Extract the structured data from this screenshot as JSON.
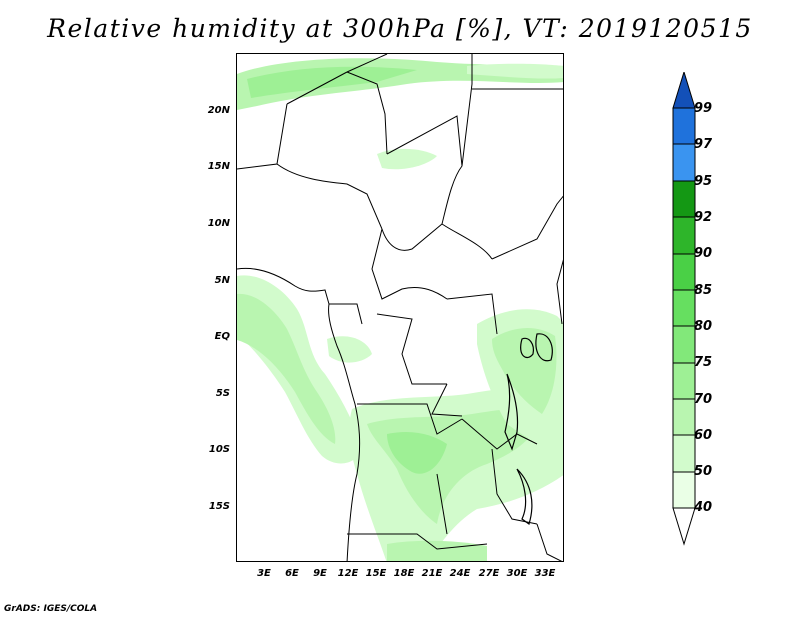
{
  "title": "Relative humidity at 300hPa [%], VT: 2019120515",
  "credit": "GrADS: IGES/COLA",
  "map": {
    "lat_labels": [
      "20N",
      "15N",
      "10N",
      "5N",
      "EQ",
      "5S",
      "10S",
      "15S"
    ],
    "lon_labels": [
      "3E",
      "6E",
      "9E",
      "12E",
      "15E",
      "18E",
      "21E",
      "24E",
      "27E",
      "30E",
      "33E"
    ]
  },
  "colorbar": {
    "levels": [
      "40",
      "50",
      "60",
      "70",
      "75",
      "80",
      "85",
      "90",
      "92",
      "95",
      "97",
      "99"
    ],
    "colors": {
      "below_40": "#ffffff",
      "40_50": "#eaffe6",
      "50_60": "#d2fbcc",
      "60_70": "#b9f5b0",
      "70_75": "#9ef095",
      "75_80": "#82e87a",
      "80_85": "#66df60",
      "85_90": "#4ad046",
      "90_92": "#2eb52a",
      "92_95": "#149814",
      "95_97": "#3a94f0",
      "97_99": "#1f72dc",
      "above_99": "#1350b8"
    }
  }
}
